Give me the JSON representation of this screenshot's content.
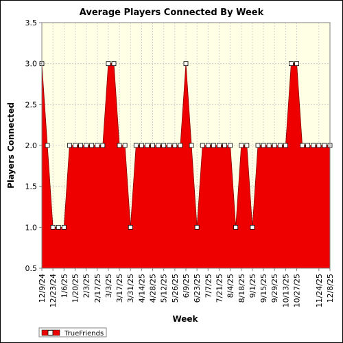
{
  "chart_data": {
    "type": "area",
    "title": "Average Players Connected By Week",
    "xlabel": "Week",
    "ylabel": "Players Connected",
    "ylim": [
      0.5,
      3.5
    ],
    "yticks": [
      "0.5",
      "1.0",
      "1.5",
      "2.0",
      "2.5",
      "3.0",
      "3.5"
    ],
    "grid": true,
    "legend_position": "bottom-left",
    "x": [
      "12/9/24",
      "12/16/24",
      "12/23/24",
      "12/30/24",
      "1/6/25",
      "1/13/25",
      "1/20/25",
      "1/27/25",
      "2/3/25",
      "2/10/25",
      "2/17/25",
      "2/24/25",
      "3/3/25",
      "3/10/25",
      "3/17/25",
      "3/24/25",
      "3/31/25",
      "4/7/25",
      "4/14/25",
      "4/21/25",
      "4/28/25",
      "5/5/25",
      "5/12/25",
      "5/19/25",
      "5/26/25",
      "6/2/25",
      "6/9/25",
      "6/16/25",
      "6/23/25",
      "6/30/25",
      "7/7/25",
      "7/14/25",
      "7/21/25",
      "7/28/25",
      "8/4/25",
      "8/11/25",
      "8/18/25",
      "8/25/25",
      "9/1/25",
      "9/8/25",
      "9/15/25",
      "9/22/25",
      "9/29/25",
      "10/6/25",
      "10/13/25",
      "10/20/25",
      "10/27/25",
      "11/3/25",
      "11/10/25",
      "11/17/25",
      "11/24/25",
      "12/1/25",
      "12/8/25"
    ],
    "xtick_labels": [
      "12/9/24",
      "12/23/24",
      "1/6/25",
      "1/20/25",
      "2/3/25",
      "2/17/25",
      "3/3/25",
      "3/17/25",
      "3/31/25",
      "4/14/25",
      "4/28/25",
      "5/12/25",
      "5/26/25",
      "6/9/25",
      "6/23/25",
      "7/7/25",
      "7/21/25",
      "8/4/25",
      "8/18/25",
      "9/1/25",
      "9/15/25",
      "9/29/25",
      "10/13/25",
      "10/27/25",
      "11/24/25",
      "12/8/25"
    ],
    "series": [
      {
        "name": "TrueFriends",
        "color": "#ee0000",
        "values": [
          3,
          2,
          1,
          1,
          1,
          2,
          2,
          2,
          2,
          2,
          2,
          2,
          3,
          3,
          2,
          2,
          1,
          2,
          2,
          2,
          2,
          2,
          2,
          2,
          2,
          2,
          3,
          2,
          1,
          2,
          2,
          2,
          2,
          2,
          2,
          1,
          2,
          2,
          1,
          2,
          2,
          2,
          2,
          2,
          2,
          3,
          3,
          2,
          2,
          2,
          2,
          2,
          2
        ]
      }
    ],
    "colors": {
      "plot_background": "#ffffe6",
      "area": "#ee0000",
      "marker_fill": "#ffffff"
    }
  }
}
